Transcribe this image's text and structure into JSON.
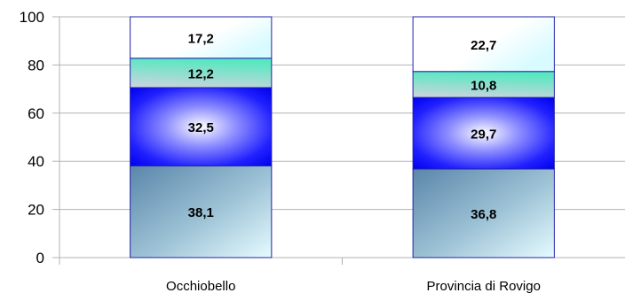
{
  "chart_data": {
    "type": "bar",
    "stacked": true,
    "categories": [
      "Occhiobello",
      "Provincia di Rovigo"
    ],
    "series": [
      {
        "values": [
          38.1,
          36.8
        ],
        "labels": [
          "38,1",
          "36,8"
        ],
        "fill": "steel-blue-gradient"
      },
      {
        "values": [
          32.5,
          29.7
        ],
        "labels": [
          "32,5",
          "29,7"
        ],
        "fill": "blue-radial-gradient"
      },
      {
        "values": [
          12.2,
          10.8
        ],
        "labels": [
          "12,2",
          "10,8"
        ],
        "fill": "aqua-gradient"
      },
      {
        "values": [
          17.2,
          22.7
        ],
        "labels": [
          "17,2",
          "22,7"
        ],
        "fill": "white-to-cyan-gradient"
      }
    ],
    "ylim": [
      0,
      100
    ],
    "yticks": [
      0,
      20,
      40,
      60,
      80,
      100
    ],
    "ytick_labels": [
      "0",
      "20",
      "40",
      "60",
      "80",
      "100"
    ],
    "grid": true,
    "title": "",
    "xlabel": "",
    "ylabel": "",
    "colors": {
      "border": "#2222aa",
      "grid": "#b3b3b3",
      "axis": "#b3b3b3"
    }
  }
}
